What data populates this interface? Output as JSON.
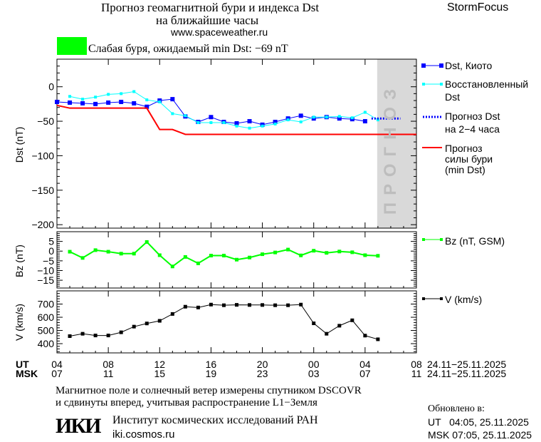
{
  "header": {
    "title_line1": "Прогноз геомагнитной бури и индекса Dst",
    "title_line2": "на ближайшие часы",
    "url": "www.spaceweather.ru",
    "brand": "StormFocus",
    "status_text": "Слабая буря, ожидаемый min Dst: −69 nT",
    "status_color": "#00ff00"
  },
  "forecast_band_label": "ПРОГНОЗ",
  "legend": {
    "dst_kyoto": "Dst, Киото",
    "dst_restored_1": "Восстановленный",
    "dst_restored_2": "Dst",
    "dst_forecast_1": "Прогноз Dst",
    "dst_forecast_2": "на 2−4 часа",
    "storm_1": "Прогноз",
    "storm_2": "силы бури",
    "storm_3": "(min Dst)",
    "bz": "Bz (nT, GSM)",
    "v": "V (km/s)"
  },
  "x_axis": {
    "ut_label": "UT",
    "msk_label": "MSK",
    "ut_ticks": [
      "04",
      "08",
      "12",
      "16",
      "20",
      "00",
      "04",
      "08"
    ],
    "msk_ticks": [
      "07",
      "11",
      "15",
      "19",
      "23",
      "03",
      "07",
      "11"
    ],
    "range_ut": "24.11−25.11.2025",
    "range_msk": "24.11−25.11.2025"
  },
  "chart_data": [
    {
      "type": "line",
      "panel": "Dst",
      "ylabel": "Dst (nT)",
      "ylim": [
        -205,
        40
      ],
      "yticks": [
        "0",
        "−50",
        "−100",
        "−150",
        "−200"
      ],
      "ytick_values": [
        0,
        -50,
        -100,
        -150,
        -200
      ],
      "xlim": [
        "24.11 04:00",
        "25.11 08:00"
      ],
      "forecast_region": [
        "25.11 04:00",
        "25.11 08:00"
      ],
      "series": [
        {
          "name": "Dst, Киото",
          "color": "#0000ff",
          "start": "24.11 04:00",
          "step_hours": 1,
          "values": [
            -22,
            -23,
            -24,
            -25,
            -23,
            -22,
            -24,
            -29,
            -20,
            -18,
            -43,
            -51,
            -44,
            -51,
            -53,
            -50,
            -55,
            -51,
            -46,
            -42,
            -46,
            -44,
            -46,
            -47,
            -50
          ]
        },
        {
          "name": "Восстановленный Dst",
          "color": "#00ffff",
          "start": "24.11 05:00",
          "step_hours": 1,
          "values": [
            -14,
            -18,
            -15,
            -11,
            -10,
            -7,
            -19,
            -22,
            -39,
            -42,
            -52,
            -52,
            -52,
            -57,
            -60,
            -57,
            -54,
            -48,
            -51,
            -44,
            -44,
            -43,
            -45,
            -37,
            -48
          ]
        },
        {
          "name": "Прогноз Dst на 2-4 часа",
          "color": "#0000ff",
          "style": "dotted",
          "points": [
            [
              "25.11 04:30",
              -46
            ],
            [
              "25.11 06:45",
              -46
            ]
          ]
        },
        {
          "name": "Прогноз силы бури (min Dst)",
          "color": "#ff0000",
          "points": [
            [
              "24.11 04:00",
              -27
            ],
            [
              "24.11 05:00",
              -31
            ],
            [
              "24.11 11:00",
              -31
            ],
            [
              "24.11 12:00",
              -62
            ],
            [
              "24.11 13:00",
              -62
            ],
            [
              "24.11 14:00",
              -69
            ],
            [
              "25.11 08:00",
              -69
            ]
          ]
        }
      ]
    },
    {
      "type": "line",
      "panel": "Bz",
      "ylabel": "Bz (nT)",
      "ylim": [
        -19,
        10
      ],
      "yticks": [
        "5",
        "0",
        "−5",
        "−10",
        "−15"
      ],
      "ytick_values": [
        5,
        0,
        -5,
        -10,
        -15
      ],
      "series": [
        {
          "name": "Bz (nT, GSM)",
          "color": "#00ff00",
          "start": "24.11 05:00",
          "step_hours": 1,
          "values": [
            -0.3,
            -3.5,
            0.5,
            -0.3,
            -1.3,
            -1.3,
            4.7,
            -2.1,
            -7.9,
            -3,
            -6.3,
            -2.3,
            -2.3,
            -4.4,
            -3.3,
            -1.6,
            -0.7,
            0.8,
            -2.2,
            0.2,
            -0.9,
            -0.2,
            -0.6,
            -2.1,
            -2.4
          ]
        }
      ]
    },
    {
      "type": "line",
      "panel": "V",
      "ylabel": "V (km/s)",
      "ylim": [
        330,
        800
      ],
      "yticks": [
        "700",
        "600",
        "500",
        "400"
      ],
      "ytick_values": [
        700,
        600,
        500,
        400
      ],
      "series": [
        {
          "name": "V (km/s)",
          "color": "#000000",
          "start": "24.11 05:00",
          "step_hours": 1,
          "values": [
            457,
            475,
            462,
            462,
            486,
            529,
            553,
            573,
            625,
            680,
            674,
            696,
            691,
            694,
            693,
            693,
            691,
            691,
            696,
            554,
            475,
            536,
            577,
            461,
            433
          ]
        }
      ]
    }
  ],
  "footer": {
    "note_line1": "Магнитное поле и солнечный ветер измерены спутником DSCOVR",
    "note_line2": "и сдвинуты вперед, учитывая распространение L1−Земля",
    "logo_text": "ИКИ",
    "institute": "Институт космических исследований РАН",
    "institute_url": "iki.cosmos.ru",
    "updated_label": "Обновлено в:",
    "updated_ut": "UT   04:05, 25.11.2025",
    "updated_msk": "MSK 07:05, 25.11.2025"
  }
}
